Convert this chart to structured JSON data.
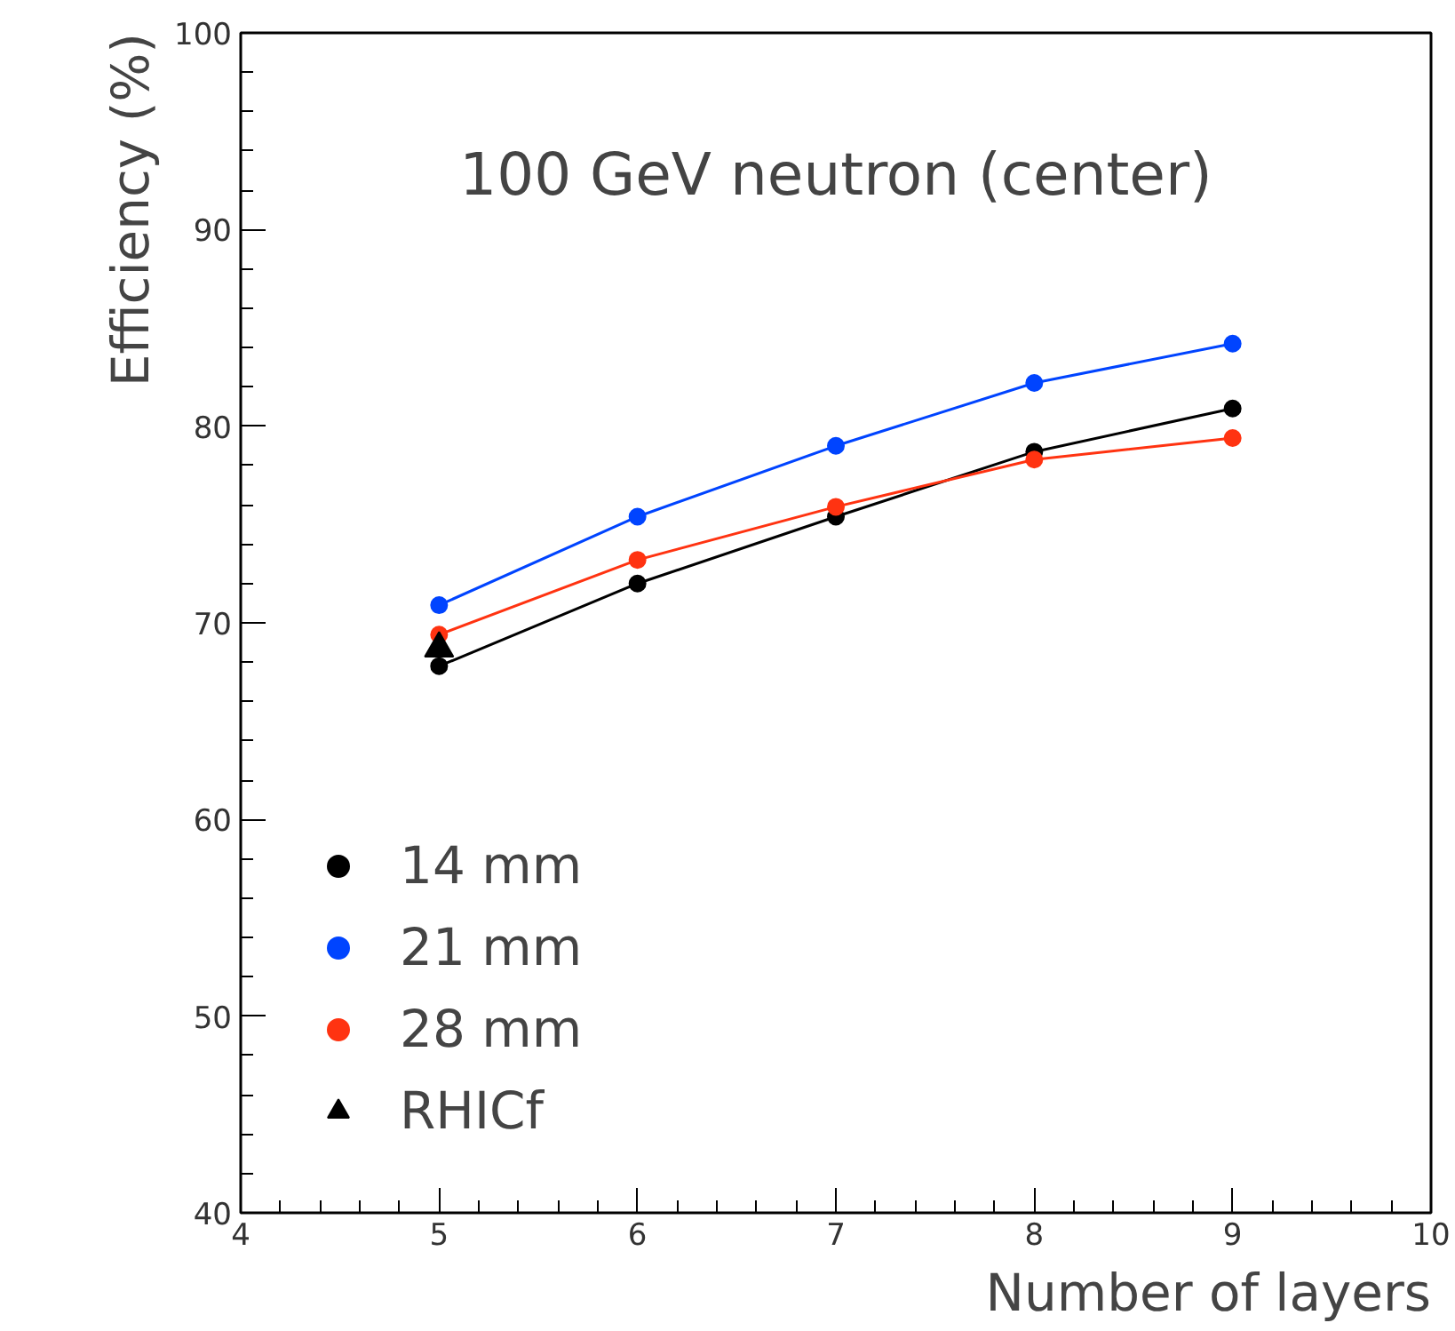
{
  "chart_data": {
    "type": "line",
    "title": "100 GeV neutron (center)",
    "xlabel": "Number of layers",
    "ylabel": "Efficiency (%)",
    "x": [
      5,
      6,
      7,
      8,
      9
    ],
    "xlim": [
      4,
      10
    ],
    "xticks": [
      4,
      5,
      6,
      7,
      8,
      9,
      10
    ],
    "ylim": [
      40,
      100
    ],
    "yticks": [
      40,
      50,
      60,
      70,
      80,
      90,
      100
    ],
    "grid": false,
    "legend": "bottom left",
    "marker": "circle",
    "line_style": "solid",
    "series": [
      {
        "name": "14 mm",
        "color": "#000000",
        "values": [
          67.8,
          72.0,
          75.4,
          78.7,
          80.9
        ]
      },
      {
        "name": "21 mm",
        "color": "#0044ff",
        "values": [
          70.9,
          75.4,
          79.0,
          82.2,
          84.2
        ]
      },
      {
        "name": "28 mm",
        "color": "#ff3311",
        "values": [
          69.4,
          73.2,
          75.9,
          78.3,
          79.4
        ]
      },
      {
        "name": "RHICf",
        "type": "scatter",
        "marker": "triangle",
        "color": "#000000",
        "x": [
          5
        ],
        "values": [
          68.7
        ]
      }
    ]
  }
}
